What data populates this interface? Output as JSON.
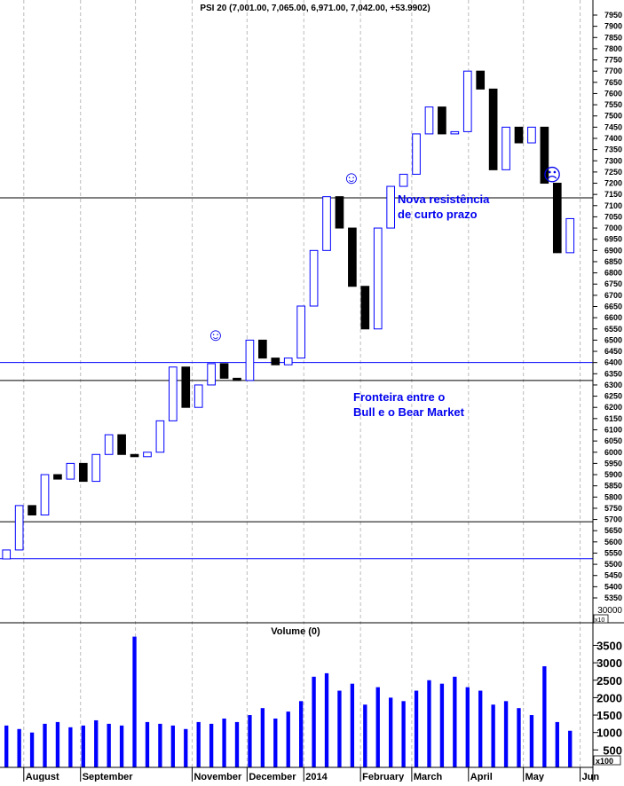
{
  "chart_data": {
    "type": "candlestick",
    "title": "PSI 20 (7,001.00, 7,065.00, 6,971.00, 7,042.00, +53.9902)",
    "volume_title": "Volume (0)",
    "volume_multiplier_label": "x100",
    "price_multiplier_label": "x10",
    "price_extra_label": "30000",
    "ylim": [
      5330,
      7975
    ],
    "yticks_step": 50,
    "ytick_min": 5350,
    "ytick_max": 7950,
    "volume_ylim": [
      0,
      3850
    ],
    "volume_ticks": [
      500,
      1000,
      1500,
      2000,
      2500,
      3000,
      3500
    ],
    "x_start": "2013-07-19",
    "x_end": "2014-06-08",
    "month_labels": [
      {
        "label": "August",
        "date": "2013-08-01"
      },
      {
        "label": "September",
        "date": "2013-09-01"
      },
      {
        "label": "November",
        "date": "2013-11-01"
      },
      {
        "label": "December",
        "date": "2013-12-01"
      },
      {
        "label": "2014",
        "date": "2014-01-01"
      },
      {
        "label": "February",
        "date": "2014-02-01"
      },
      {
        "label": "March",
        "date": "2014-03-01"
      },
      {
        "label": "April",
        "date": "2014-04-01"
      },
      {
        "label": "May",
        "date": "2014-05-01"
      },
      {
        "label": "Jun",
        "date": "2014-06-01"
      }
    ],
    "grid_dates": [
      "2013-08-01",
      "2013-09-01",
      "2013-10-01",
      "2013-11-01",
      "2013-12-01",
      "2014-01-01",
      "2014-02-01",
      "2014-03-01",
      "2014-04-01",
      "2014-05-01",
      "2014-06-01"
    ],
    "closes": [
      5564,
      5762,
      5720,
      5900,
      5880,
      5950,
      5870,
      5990,
      6078,
      5990,
      5980,
      6000,
      6140,
      6380,
      6200,
      6300,
      6395,
      6330,
      6320,
      6500,
      6420,
      6390,
      6420,
      6652,
      6900,
      7140,
      7000,
      6740,
      6550,
      7000,
      7186,
      7240,
      7420,
      7540,
      7420,
      7430,
      7700,
      7620,
      7260,
      7450,
      7380,
      7450,
      7200,
      6890,
      7042
    ],
    "volumes": [
      1200,
      1100,
      1000,
      1250,
      1300,
      1150,
      1200,
      1350,
      1250,
      1200,
      3750,
      1300,
      1250,
      1200,
      1100,
      1300,
      1250,
      1400,
      1300,
      1500,
      1700,
      1400,
      1600,
      1900,
      2600,
      2700,
      2200,
      2400,
      1800,
      2300,
      2000,
      1900,
      2200,
      2500,
      2400,
      2600,
      2300,
      2200,
      1800,
      1900,
      1700,
      1500,
      2900,
      1300,
      1050
    ],
    "period_days": 7,
    "horizontal_lines": [
      {
        "value": 7135,
        "color": "#000000"
      },
      {
        "value": 6400,
        "color": "#0000ff"
      },
      {
        "value": 6320,
        "color": "#000000"
      },
      {
        "value": 5690,
        "color": "#000000"
      },
      {
        "value": 5525,
        "color": "#0000ff"
      }
    ],
    "annotations": {
      "resistance_line1": "Nova resistência",
      "resistance_line2": "de curto prazo",
      "border_line1": "Fronteira entre o",
      "border_line2": "Bull e o Bear Market",
      "smiley1": "☺",
      "smiley2": "☺",
      "frown": "☹"
    },
    "colors": {
      "up": "#0000ff",
      "down": "#000000",
      "volume": "#0000ff",
      "grid": "#bbbbbb",
      "annotation": "#0000ee"
    }
  }
}
